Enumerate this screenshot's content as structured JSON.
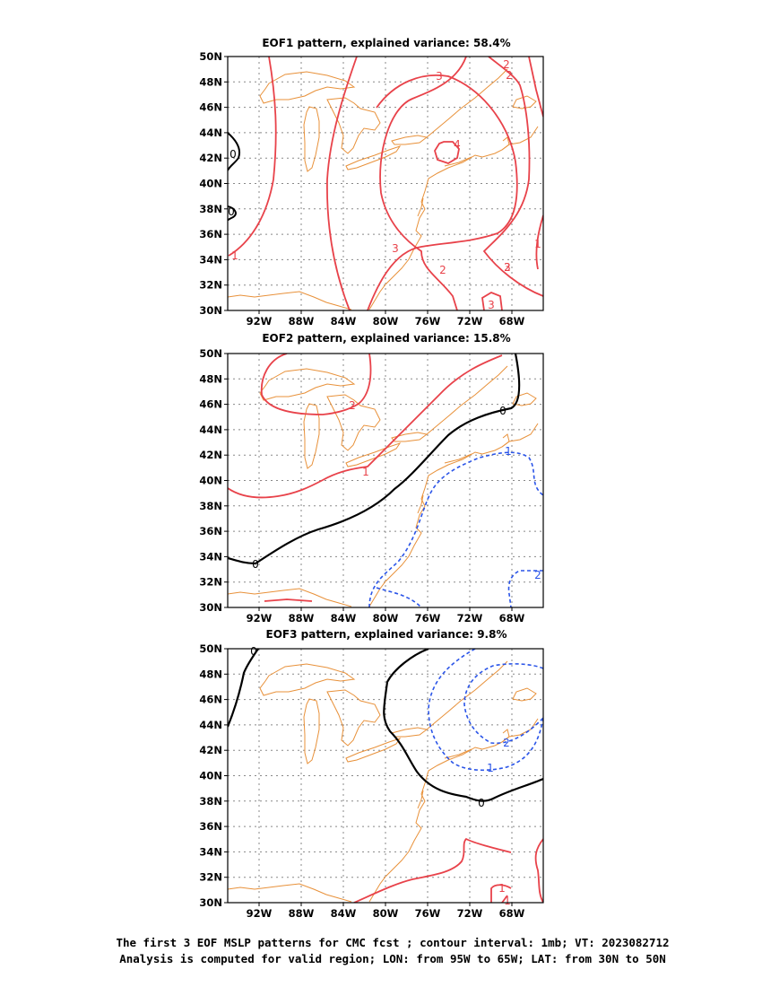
{
  "panels": [
    {
      "title": "EOF1 pattern, explained variance: 58.4%"
    },
    {
      "title": "EOF2 pattern, explained variance: 15.8%"
    },
    {
      "title": "EOF3 pattern, explained variance: 9.8%"
    }
  ],
  "lat_ticks": [
    "50N",
    "48N",
    "46N",
    "44N",
    "42N",
    "40N",
    "38N",
    "36N",
    "34N",
    "32N",
    "30N"
  ],
  "lon_ticks": [
    "92W",
    "88W",
    "84W",
    "80W",
    "76W",
    "72W",
    "68W"
  ],
  "colors": {
    "positive": "#e8424a",
    "zero": "#000000",
    "negative": "#2a54e8",
    "coast": "#e8913a",
    "grid": "#888888"
  },
  "contour_labels": {
    "p1": [
      "0",
      "0",
      "1",
      "3",
      "3",
      "2",
      "2",
      "4",
      "3",
      "2",
      "2",
      "1",
      "3"
    ],
    "p2": [
      "2",
      "1",
      "0",
      "0",
      "1",
      "2"
    ],
    "p3": [
      "0",
      "0",
      "1",
      "2",
      "1",
      "1"
    ]
  },
  "footer": {
    "line1": "The first 3 EOF MSLP patterns for CMC fcst ; contour interval: 1mb; VT: 2023082712",
    "line2": "Analysis is computed for valid region; LON: from 95W to 65W; LAT: from 30N to 50N"
  }
}
